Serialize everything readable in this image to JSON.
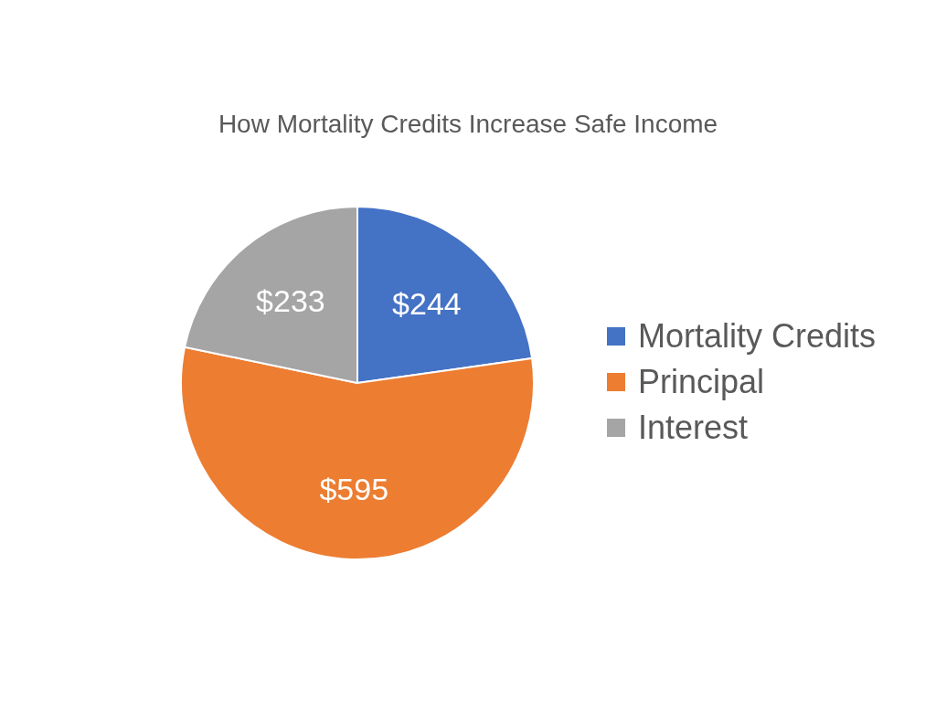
{
  "chart_data": {
    "type": "pie",
    "title": "How Mortality Credits Increase Safe Income",
    "categories": [
      "Mortality Credits",
      "Principal",
      "Interest"
    ],
    "values": [
      244,
      595,
      233
    ],
    "colors": [
      "#4472c4",
      "#ed7d31",
      "#a5a5a5"
    ],
    "value_labels": [
      "$244",
      "$595",
      "$233"
    ],
    "legend": "right"
  }
}
